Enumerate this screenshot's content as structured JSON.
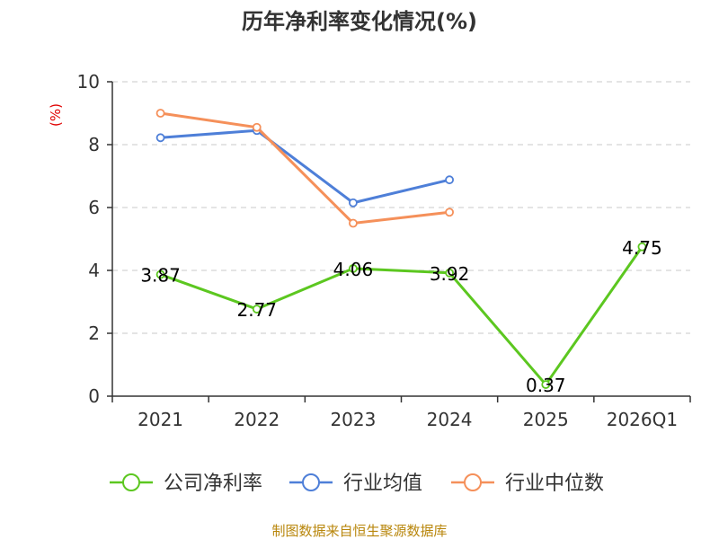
{
  "chart_data": {
    "type": "line",
    "title": "历年净利率变化情况(%)",
    "ylabel": "(%)",
    "xlabel": "",
    "categories": [
      "2021",
      "2022",
      "2023",
      "2024",
      "2025",
      "2026Q1"
    ],
    "ylim": [
      0,
      10
    ],
    "yticks": [
      0,
      2,
      4,
      6,
      8,
      10
    ],
    "grid": true,
    "legend_position": "bottom",
    "series": [
      {
        "name": "公司净利率",
        "color": "#5cc720",
        "values": [
          3.87,
          2.77,
          4.06,
          3.92,
          0.37,
          4.75
        ],
        "labels": [
          "3.87",
          "2.77",
          "4.06",
          "3.92",
          "0.37",
          "4.75"
        ]
      },
      {
        "name": "行业均值",
        "color": "#4e7fd8",
        "values": [
          8.22,
          8.45,
          6.15,
          6.88,
          null,
          null
        ]
      },
      {
        "name": "行业中位数",
        "color": "#f5905a",
        "values": [
          9.0,
          8.55,
          5.5,
          5.85,
          null,
          null
        ]
      }
    ],
    "source": "制图数据来自恒生聚源数据库"
  }
}
